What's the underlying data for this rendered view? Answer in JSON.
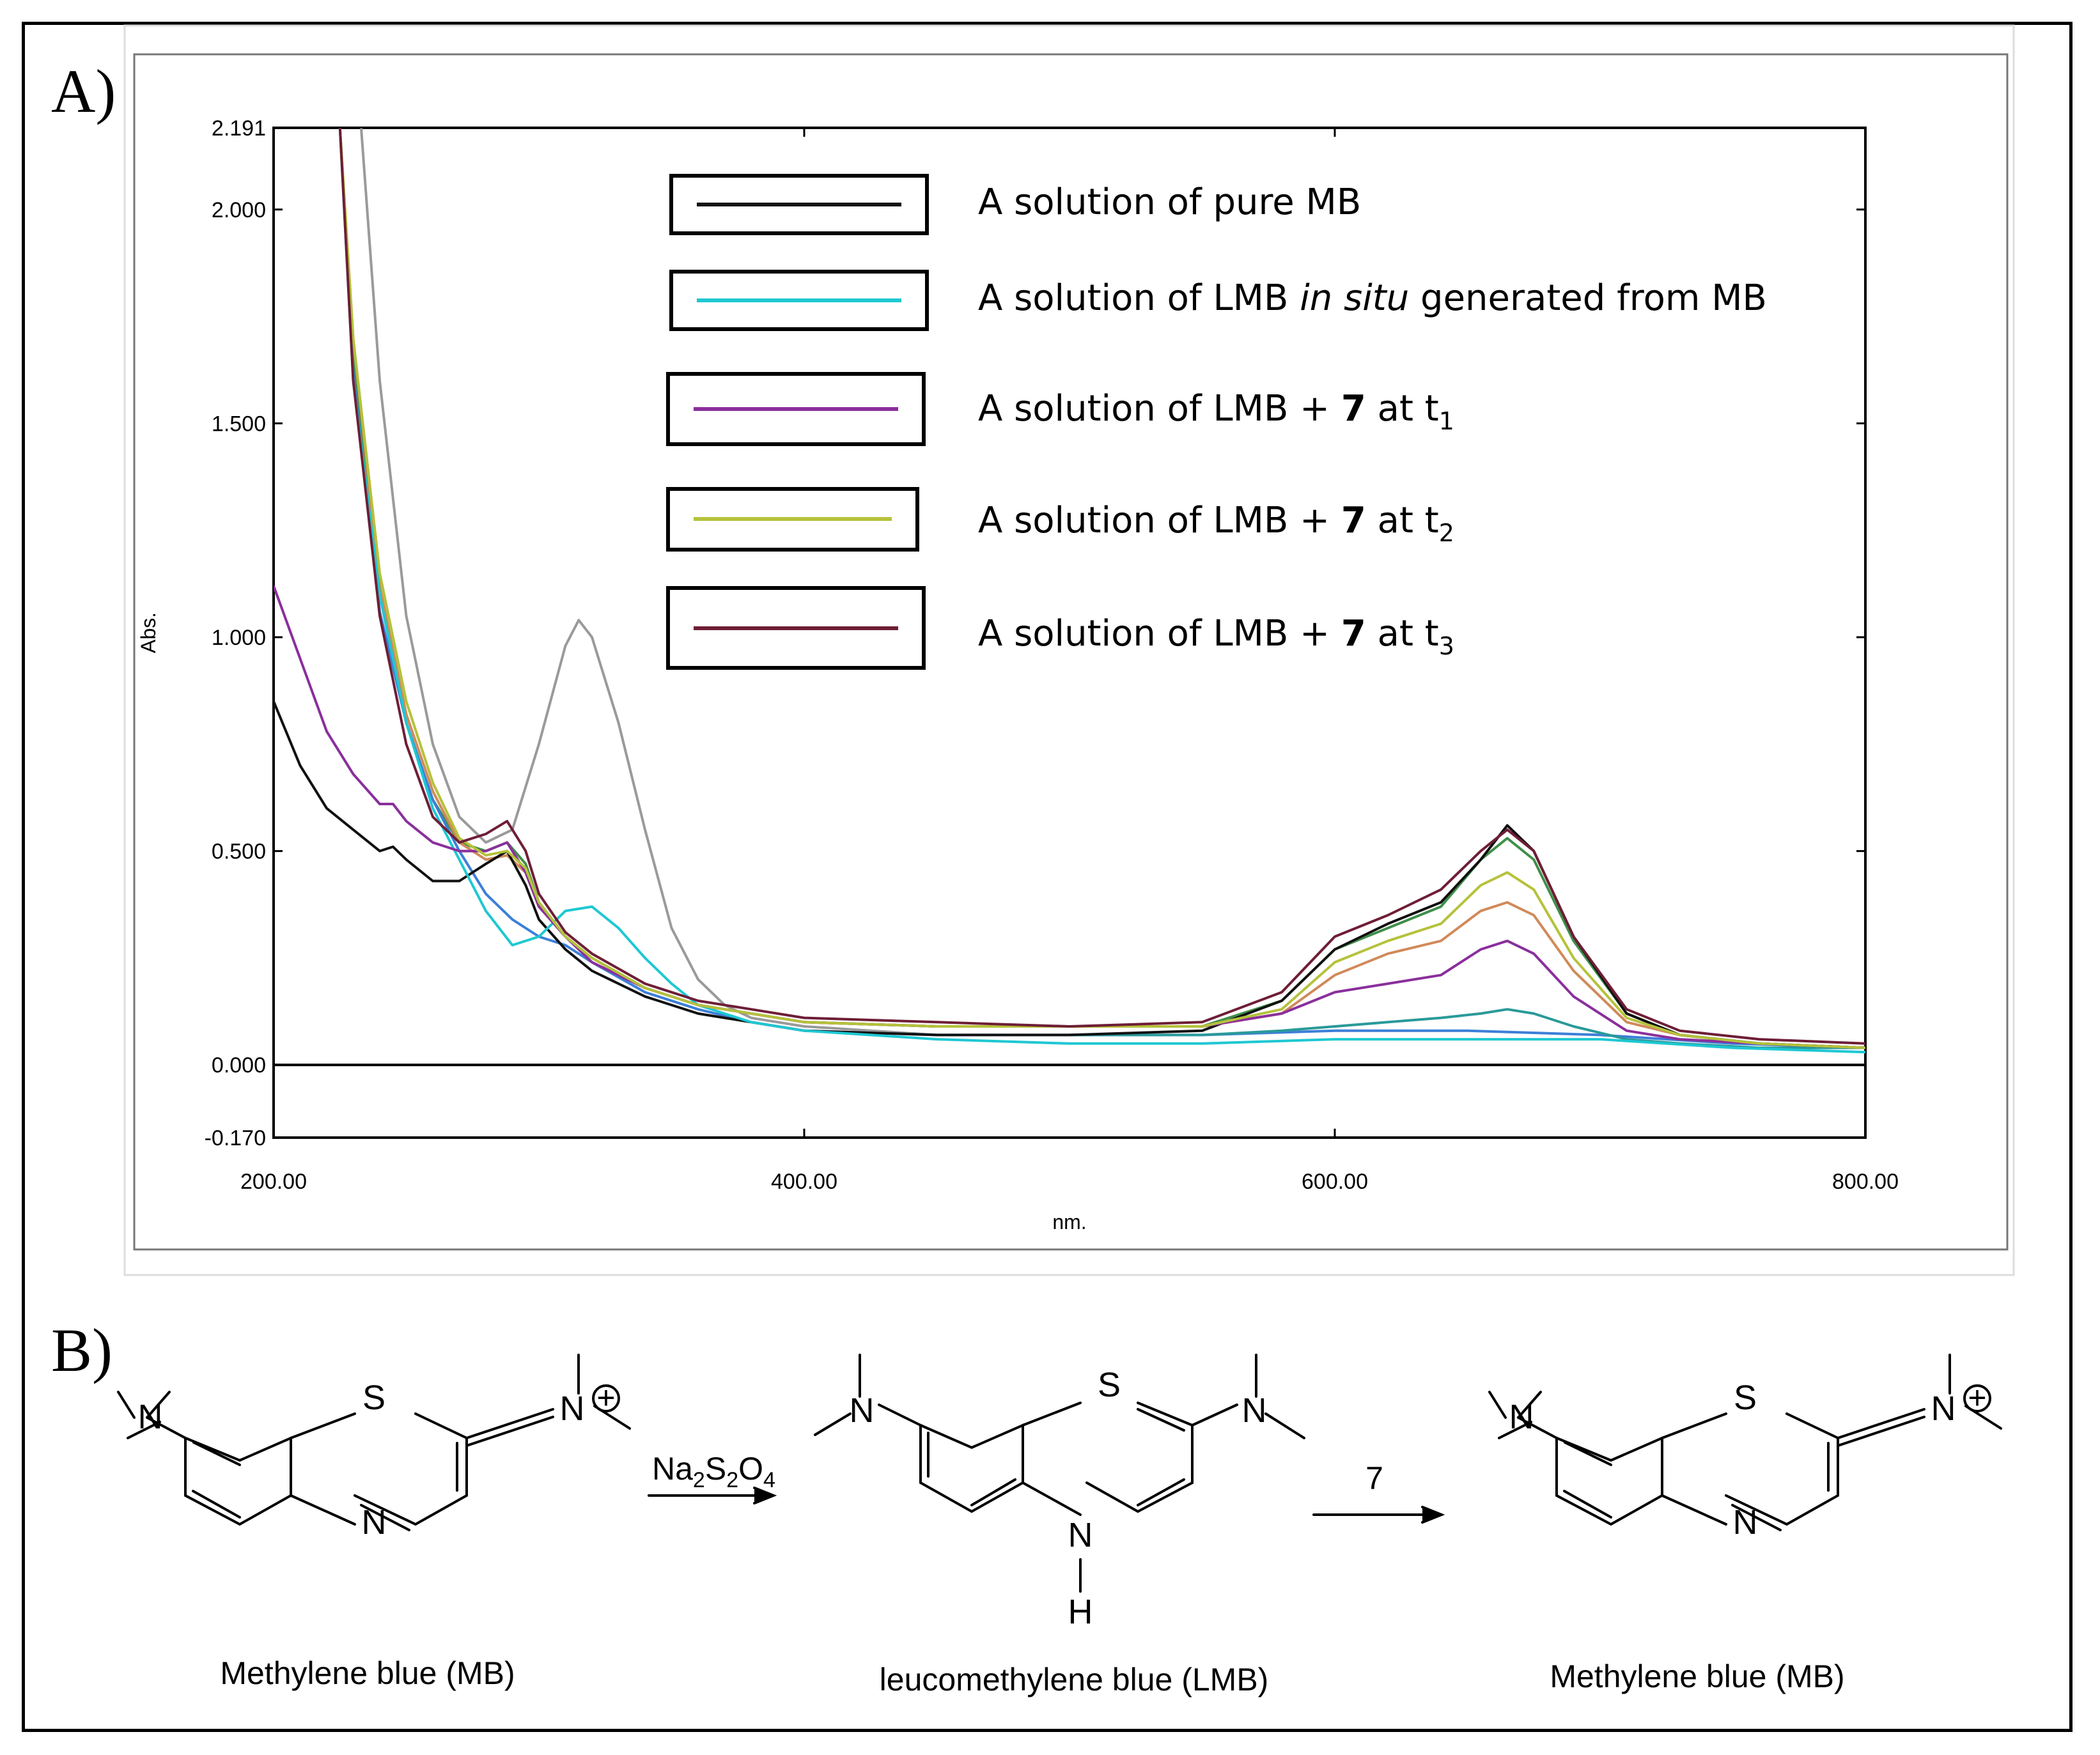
{
  "panels": {
    "a_label": "A)",
    "b_label": "B)"
  },
  "chart_data": {
    "type": "line",
    "title": "",
    "xlabel": "nm.",
    "ylabel": "Abs.",
    "xlim": [
      200,
      800
    ],
    "ylim": [
      -0.17,
      2.191
    ],
    "x_ticks": [
      200,
      400,
      600,
      800
    ],
    "x_tick_labels": [
      "200.00",
      "400.00",
      "600.00",
      "800.00"
    ],
    "y_ticks": [
      -0.17,
      0.0,
      0.5,
      1.0,
      1.5,
      2.0,
      2.191
    ],
    "y_tick_labels": [
      "-0.170",
      "0.000",
      "0.500",
      "1.000",
      "1.500",
      "2.000",
      "2.191"
    ],
    "grid": false,
    "legend_position": "top-center",
    "series": [
      {
        "name": "A solution of pure MB",
        "legend_text": "A solution of pure MB",
        "color": "#111111",
        "x": [
          200,
          210,
          220,
          230,
          240,
          245,
          250,
          260,
          270,
          280,
          288,
          295,
          300,
          310,
          320,
          340,
          360,
          380,
          400,
          450,
          500,
          550,
          580,
          600,
          620,
          640,
          655,
          665,
          675,
          690,
          710,
          730,
          760,
          800
        ],
        "y": [
          0.85,
          0.7,
          0.6,
          0.55,
          0.5,
          0.51,
          0.48,
          0.43,
          0.43,
          0.47,
          0.5,
          0.42,
          0.34,
          0.27,
          0.22,
          0.16,
          0.12,
          0.1,
          0.08,
          0.07,
          0.07,
          0.08,
          0.15,
          0.27,
          0.33,
          0.38,
          0.48,
          0.56,
          0.5,
          0.3,
          0.12,
          0.07,
          0.05,
          0.04
        ]
      },
      {
        "name": "A solution of LMB in situ generated from MB",
        "legend_text_pre": "A solution of LMB ",
        "legend_text_italic": "in situ",
        "legend_text_post": " generated from MB",
        "color": "#1ec8d2",
        "x": [
          225,
          230,
          240,
          250,
          260,
          270,
          280,
          290,
          300,
          310,
          320,
          330,
          340,
          350,
          360,
          380,
          400,
          450,
          500,
          550,
          600,
          650,
          700,
          750,
          800
        ],
        "y": [
          2.19,
          1.6,
          1.1,
          0.8,
          0.6,
          0.48,
          0.36,
          0.28,
          0.3,
          0.36,
          0.37,
          0.32,
          0.25,
          0.19,
          0.14,
          0.1,
          0.08,
          0.06,
          0.05,
          0.05,
          0.06,
          0.06,
          0.06,
          0.04,
          0.03
        ]
      },
      {
        "name": "A solution of LMB + 7 at t1",
        "legend_text_pre": "A solution of LMB + ",
        "legend_text_bold": "7",
        "legend_text_mid": " at t",
        "legend_text_sub": "1",
        "color": "#8a2f9c",
        "x": [
          200,
          210,
          220,
          230,
          240,
          245,
          250,
          260,
          270,
          280,
          288,
          295,
          300,
          310,
          320,
          340,
          360,
          380,
          400,
          450,
          500,
          550,
          580,
          600,
          620,
          640,
          655,
          665,
          675,
          690,
          710,
          730,
          760,
          800
        ],
        "y": [
          1.12,
          0.95,
          0.78,
          0.68,
          0.61,
          0.61,
          0.57,
          0.52,
          0.5,
          0.5,
          0.52,
          0.45,
          0.37,
          0.3,
          0.24,
          0.18,
          0.14,
          0.12,
          0.1,
          0.09,
          0.09,
          0.09,
          0.12,
          0.17,
          0.19,
          0.21,
          0.27,
          0.29,
          0.26,
          0.16,
          0.08,
          0.06,
          0.05,
          0.04
        ]
      },
      {
        "name": "A solution of LMB + 7 at t2",
        "legend_text_pre": "A solution of LMB + ",
        "legend_text_bold": "7",
        "legend_text_mid": " at t",
        "legend_text_sub": "2",
        "color": "#b5c23a",
        "x": [
          225,
          230,
          240,
          250,
          260,
          270,
          280,
          288,
          295,
          300,
          310,
          320,
          340,
          360,
          380,
          400,
          450,
          500,
          550,
          580,
          600,
          620,
          640,
          655,
          665,
          675,
          690,
          710,
          730,
          760,
          800
        ],
        "y": [
          2.19,
          1.7,
          1.15,
          0.85,
          0.66,
          0.53,
          0.49,
          0.5,
          0.46,
          0.38,
          0.3,
          0.25,
          0.18,
          0.14,
          0.12,
          0.1,
          0.09,
          0.09,
          0.09,
          0.13,
          0.24,
          0.29,
          0.33,
          0.42,
          0.45,
          0.41,
          0.25,
          0.11,
          0.07,
          0.05,
          0.04
        ]
      },
      {
        "name": "A solution of LMB + 7 at t3",
        "legend_text_pre": "A solution of LMB + ",
        "legend_text_bold": "7",
        "legend_text_mid": " at t",
        "legend_text_sub": "3",
        "color": "#6e1e36",
        "x": [
          225,
          230,
          240,
          250,
          260,
          270,
          280,
          288,
          295,
          300,
          310,
          320,
          340,
          360,
          380,
          400,
          450,
          500,
          550,
          580,
          600,
          620,
          640,
          655,
          665,
          675,
          690,
          710,
          730,
          760,
          800
        ],
        "y": [
          2.19,
          1.6,
          1.05,
          0.75,
          0.58,
          0.52,
          0.54,
          0.57,
          0.5,
          0.4,
          0.31,
          0.26,
          0.19,
          0.15,
          0.13,
          0.11,
          0.1,
          0.09,
          0.1,
          0.17,
          0.3,
          0.35,
          0.41,
          0.5,
          0.55,
          0.5,
          0.3,
          0.13,
          0.08,
          0.06,
          0.05
        ]
      }
    ],
    "extra_traces": [
      {
        "color": "#9a9a9a",
        "x": [
          233,
          240,
          250,
          260,
          270,
          280,
          290,
          300,
          310,
          315,
          320,
          330,
          340,
          350,
          360,
          370,
          380,
          400,
          450
        ],
        "y": [
          2.19,
          1.6,
          1.05,
          0.75,
          0.58,
          0.52,
          0.55,
          0.75,
          0.98,
          1.04,
          1.0,
          0.8,
          0.55,
          0.32,
          0.2,
          0.14,
          0.11,
          0.09,
          0.07
        ]
      },
      {
        "color": "#3f8f4a",
        "x": [
          225,
          230,
          240,
          250,
          260,
          270,
          280,
          288,
          295,
          300,
          310,
          320,
          340,
          360,
          380,
          400,
          450,
          500,
          550,
          580,
          600,
          620,
          640,
          655,
          665,
          675,
          690,
          710,
          730,
          760,
          800
        ],
        "y": [
          2.19,
          1.65,
          1.1,
          0.8,
          0.62,
          0.52,
          0.5,
          0.52,
          0.47,
          0.38,
          0.3,
          0.25,
          0.18,
          0.14,
          0.12,
          0.1,
          0.09,
          0.09,
          0.09,
          0.15,
          0.27,
          0.32,
          0.37,
          0.48,
          0.53,
          0.48,
          0.29,
          0.12,
          0.07,
          0.05,
          0.04
        ]
      },
      {
        "color": "#d08a5a",
        "x": [
          225,
          230,
          240,
          250,
          260,
          270,
          280,
          288,
          295,
          300,
          310,
          320,
          340,
          360,
          380,
          400,
          450,
          500,
          550,
          580,
          600,
          620,
          640,
          655,
          665,
          675,
          690,
          710,
          730,
          760,
          800
        ],
        "y": [
          2.19,
          1.7,
          1.12,
          0.82,
          0.64,
          0.52,
          0.48,
          0.49,
          0.45,
          0.37,
          0.3,
          0.25,
          0.18,
          0.14,
          0.12,
          0.1,
          0.09,
          0.09,
          0.09,
          0.12,
          0.21,
          0.26,
          0.29,
          0.36,
          0.38,
          0.35,
          0.22,
          0.1,
          0.07,
          0.05,
          0.04
        ]
      },
      {
        "color": "#3c7fd8",
        "x": [
          225,
          230,
          240,
          250,
          260,
          270,
          280,
          290,
          300,
          310,
          320,
          340,
          360,
          380,
          400,
          450,
          500,
          550,
          600,
          650,
          700,
          750,
          800
        ],
        "y": [
          2.19,
          1.62,
          1.06,
          0.8,
          0.62,
          0.5,
          0.4,
          0.34,
          0.3,
          0.28,
          0.24,
          0.17,
          0.13,
          0.1,
          0.08,
          0.07,
          0.07,
          0.07,
          0.08,
          0.08,
          0.07,
          0.05,
          0.04
        ]
      },
      {
        "color": "#2a9a9a",
        "x": [
          500,
          550,
          580,
          600,
          620,
          640,
          655,
          665,
          675,
          690,
          710,
          730,
          760,
          800
        ],
        "y": [
          0.07,
          0.07,
          0.08,
          0.09,
          0.1,
          0.11,
          0.12,
          0.13,
          0.12,
          0.09,
          0.06,
          0.05,
          0.04,
          0.04
        ]
      }
    ]
  },
  "scheme": {
    "compound_mb_1": "Methylene blue (MB)",
    "compound_lmb": "leucomethylene blue (LMB)",
    "compound_mb_2": "Methylene blue (MB)",
    "reagent_1_main": "Na",
    "reagent_1_sub_a": "2",
    "reagent_1_mid": "S",
    "reagent_1_sub_b": "2",
    "reagent_1_end": "O",
    "reagent_1_sub_c": "4",
    "reagent_2": "7",
    "atom_s": "S",
    "atom_n": "N",
    "atom_h": "H",
    "charge_plus": "+"
  }
}
